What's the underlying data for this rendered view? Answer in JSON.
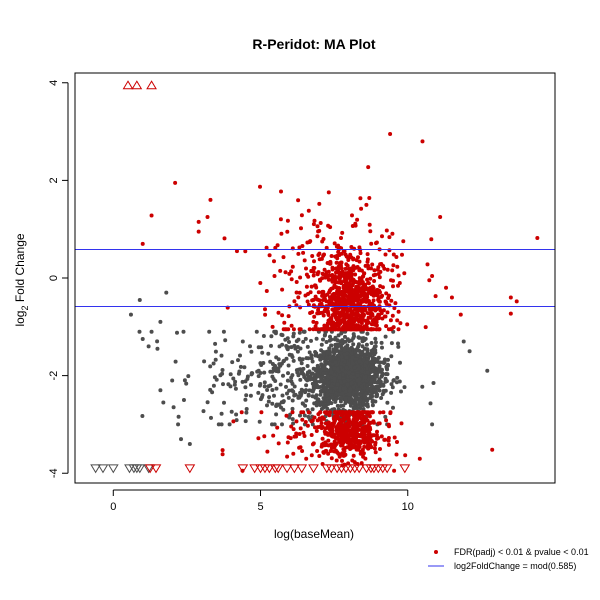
{
  "chart_data": {
    "type": "scatter",
    "title": "R-Peridot: MA Plot",
    "xlabel": "log(baseMean)",
    "ylabel_main": "log",
    "ylabel_sub": "2",
    "ylabel_rest": " Fold Change",
    "xlim": [
      -1.3,
      15.0
    ],
    "ylim": [
      -4.2,
      4.2
    ],
    "x_ticks": [
      0,
      5,
      10
    ],
    "y_ticks": [
      -4,
      -2,
      0,
      2,
      4
    ],
    "hlines": [
      0.585,
      -0.585
    ],
    "colors": {
      "significant": "#cc0000",
      "nonsignificant": "#4d4d4d",
      "threshold_line": "#3333ee"
    },
    "clusters": [
      {
        "name": "gray-core",
        "color": "nonsignificant",
        "x_mean": 8.0,
        "x_sd": 0.55,
        "y_mean": -2.0,
        "y_sd": 0.33,
        "count": 1400
      },
      {
        "name": "gray-spread",
        "color": "nonsignificant",
        "x_mean": 6.3,
        "x_sd": 1.6,
        "y_mean": -2.0,
        "y_sd": 0.55,
        "count": 420
      },
      {
        "name": "red-upper-core",
        "color": "significant",
        "x_mean": 8.0,
        "x_sd": 0.6,
        "y_mean": -0.5,
        "y_sd": 0.45,
        "count": 750
      },
      {
        "name": "red-upper-spread",
        "color": "significant",
        "x_mean": 7.6,
        "x_sd": 1.3,
        "y_mean": 0.1,
        "y_sd": 0.8,
        "count": 230
      },
      {
        "name": "red-lower-core",
        "color": "significant",
        "x_mean": 8.0,
        "x_sd": 0.6,
        "y_mean": -3.15,
        "y_sd": 0.28,
        "count": 480
      },
      {
        "name": "red-lower-spread",
        "color": "significant",
        "x_mean": 7.3,
        "x_sd": 1.3,
        "y_mean": -3.2,
        "y_sd": 0.35,
        "count": 70
      }
    ],
    "points": [
      {
        "x": 2.1,
        "y": 1.95,
        "s": 1
      },
      {
        "x": 1.3,
        "y": 1.28,
        "s": 1
      },
      {
        "x": 1.0,
        "y": 0.7,
        "s": 1
      },
      {
        "x": 3.3,
        "y": 1.6,
        "s": 1
      },
      {
        "x": 2.9,
        "y": 1.15,
        "s": 1
      },
      {
        "x": 3.2,
        "y": 1.25,
        "s": 1
      },
      {
        "x": 2.9,
        "y": 0.95,
        "s": 1
      },
      {
        "x": 4.2,
        "y": 0.55,
        "s": 1
      },
      {
        "x": 14.4,
        "y": 0.82,
        "s": 1
      },
      {
        "x": 13.5,
        "y": -0.4,
        "s": 1
      },
      {
        "x": 13.7,
        "y": -0.48,
        "s": 1
      },
      {
        "x": 13.5,
        "y": -0.73,
        "s": 1
      },
      {
        "x": 10.5,
        "y": 2.8,
        "s": 1
      },
      {
        "x": 9.4,
        "y": 2.95,
        "s": 1
      },
      {
        "x": 11.1,
        "y": 1.25,
        "s": 1
      },
      {
        "x": 11.5,
        "y": -0.4,
        "s": 1
      },
      {
        "x": 11.8,
        "y": -0.75,
        "s": 1
      },
      {
        "x": 11.3,
        "y": -0.2,
        "s": 1
      },
      {
        "x": 0.9,
        "y": -0.45,
        "s": 0
      },
      {
        "x": 0.6,
        "y": -0.75,
        "s": 0
      },
      {
        "x": 1.3,
        "y": -1.1,
        "s": 0
      },
      {
        "x": 1.0,
        "y": -1.25,
        "s": 0
      },
      {
        "x": 1.2,
        "y": -1.4,
        "s": 0
      },
      {
        "x": 1.6,
        "y": -0.9,
        "s": 0
      },
      {
        "x": 1.5,
        "y": -1.45,
        "s": 0
      },
      {
        "x": 1.8,
        "y": -0.3,
        "s": 0
      },
      {
        "x": 1.6,
        "y": -2.3,
        "s": 0
      },
      {
        "x": 1.7,
        "y": -2.55,
        "s": 0
      },
      {
        "x": 2.2,
        "y": -3.0,
        "s": 0
      },
      {
        "x": 2.3,
        "y": -3.3,
        "s": 0
      },
      {
        "x": 2.6,
        "y": -3.4,
        "s": 0
      },
      {
        "x": 2.0,
        "y": -2.1,
        "s": 0
      },
      {
        "x": 2.4,
        "y": -2.5,
        "s": 0
      },
      {
        "x": 12.7,
        "y": -1.9,
        "s": 0
      },
      {
        "x": 12.1,
        "y": -1.5,
        "s": 0
      },
      {
        "x": 11.9,
        "y": -1.3,
        "s": 0
      }
    ],
    "triangles_up": [
      {
        "x": 0.5,
        "y": 3.95
      },
      {
        "x": 0.8,
        "y": 3.95
      },
      {
        "x": 1.3,
        "y": 3.95
      }
    ],
    "triangles_down_gray": [
      -0.6,
      -0.35,
      0.0,
      0.55,
      0.7,
      0.8,
      0.9,
      1.2
    ],
    "triangles_down_red": [
      1.25,
      1.45,
      2.6,
      4.4,
      4.8,
      5.0,
      5.15,
      5.3,
      5.5,
      5.6,
      5.9,
      6.15,
      6.4,
      6.8,
      7.25,
      7.4,
      7.6,
      7.75,
      7.9,
      8.05,
      8.2,
      8.35,
      8.6,
      8.75,
      8.85,
      9.0,
      9.15,
      9.3,
      9.9
    ],
    "legend": [
      {
        "label": "FDR(padj) < 0.01 & pvalue < 0.01",
        "kind": "point",
        "color": "significant"
      },
      {
        "label": "log2FoldChange = mod(0.585)",
        "kind": "line",
        "color": "threshold_line"
      }
    ]
  }
}
